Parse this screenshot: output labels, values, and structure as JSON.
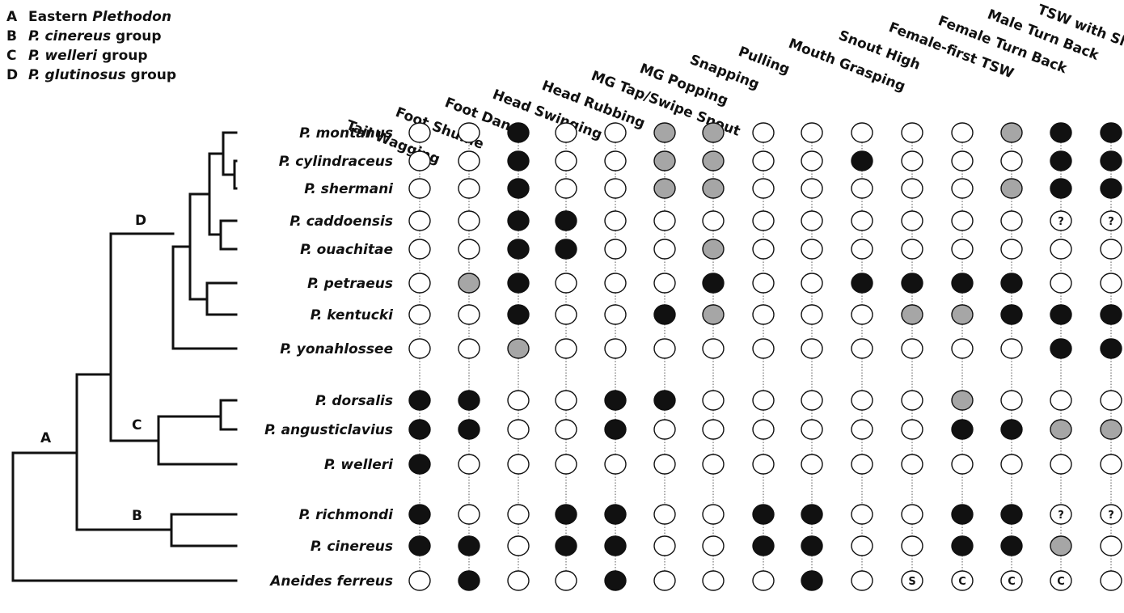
{
  "legend": [
    {
      "letter": "A",
      "parts": [
        {
          "text": "Eastern ",
          "italic": false
        },
        {
          "text": "Plethodon",
          "italic": true
        }
      ]
    },
    {
      "letter": "B",
      "parts": [
        {
          "text": "P. cinereus",
          "italic": true
        },
        {
          "text": " group",
          "italic": false
        }
      ]
    },
    {
      "letter": "C",
      "parts": [
        {
          "text": "P. welleri",
          "italic": true
        },
        {
          "text": " group",
          "italic": false
        }
      ]
    },
    {
      "letter": "D",
      "parts": [
        {
          "text": "P. glutinosus",
          "italic": true
        },
        {
          "text": " group",
          "italic": false
        }
      ]
    }
  ],
  "clade_labels": [
    "A",
    "B",
    "C",
    "D"
  ],
  "behaviors": [
    "Tail Wagging",
    "Foot Shuffle",
    "Foot Dance",
    "Head Swinging",
    "Head Rubbing",
    "MG Tap/Swipe Snout",
    "MG Popping",
    "Snapping",
    "Pulling",
    "Mouth Grasping",
    "Snout High",
    "Female-first TSW",
    "Female Turn Back",
    "Male Turn Back",
    "TSW with Slapping"
  ],
  "state_colors": {
    "present": "#111111",
    "variable": "#a6a6a6",
    "absent": "#ffffff",
    "outline": "#111111"
  },
  "state_key": {
    "0": "absent",
    "1": "present",
    "2": "variable",
    "?": "question",
    "S": "letter",
    "C": "letter"
  },
  "taxa": [
    {
      "name": "P. montanus",
      "states": [
        "0",
        "0",
        "1",
        "0",
        "0",
        "2",
        "2",
        "0",
        "0",
        "0",
        "0",
        "0",
        "2",
        "1",
        "1"
      ]
    },
    {
      "name": "P. cylindraceus",
      "states": [
        "0",
        "0",
        "1",
        "0",
        "0",
        "2",
        "2",
        "0",
        "0",
        "1",
        "0",
        "0",
        "0",
        "1",
        "1"
      ]
    },
    {
      "name": "P. shermani",
      "states": [
        "0",
        "0",
        "1",
        "0",
        "0",
        "2",
        "2",
        "0",
        "0",
        "0",
        "0",
        "0",
        "2",
        "1",
        "1"
      ]
    },
    {
      "name": "P. caddoensis",
      "states": [
        "0",
        "0",
        "1",
        "1",
        "0",
        "0",
        "0",
        "0",
        "0",
        "0",
        "0",
        "0",
        "0",
        "?",
        "?"
      ]
    },
    {
      "name": "P. ouachitae",
      "states": [
        "0",
        "0",
        "1",
        "1",
        "0",
        "0",
        "2",
        "0",
        "0",
        "0",
        "0",
        "0",
        "0",
        "0",
        "0"
      ]
    },
    {
      "name": "P. petraeus",
      "states": [
        "0",
        "2",
        "1",
        "0",
        "0",
        "0",
        "1",
        "0",
        "0",
        "1",
        "1",
        "1",
        "1",
        "0",
        "0"
      ]
    },
    {
      "name": "P. kentucki",
      "states": [
        "0",
        "0",
        "1",
        "0",
        "0",
        "1",
        "2",
        "0",
        "0",
        "0",
        "2",
        "2",
        "1",
        "1",
        "1"
      ]
    },
    {
      "name": "P. yonahlossee",
      "states": [
        "0",
        "0",
        "2",
        "0",
        "0",
        "0",
        "0",
        "0",
        "0",
        "0",
        "0",
        "0",
        "0",
        "1",
        "1"
      ]
    },
    {
      "name": "P. dorsalis",
      "states": [
        "1",
        "1",
        "0",
        "0",
        "1",
        "1",
        "0",
        "0",
        "0",
        "0",
        "0",
        "2",
        "0",
        "0",
        "0"
      ]
    },
    {
      "name": "P. angusticlavius",
      "states": [
        "1",
        "1",
        "0",
        "0",
        "1",
        "0",
        "0",
        "0",
        "0",
        "0",
        "0",
        "1",
        "1",
        "2",
        "2"
      ]
    },
    {
      "name": "P. welleri",
      "states": [
        "1",
        "0",
        "0",
        "0",
        "0",
        "0",
        "0",
        "0",
        "0",
        "0",
        "0",
        "0",
        "0",
        "0",
        "0"
      ]
    },
    {
      "name": "P. richmondi",
      "states": [
        "1",
        "0",
        "0",
        "1",
        "1",
        "0",
        "0",
        "1",
        "1",
        "0",
        "0",
        "1",
        "1",
        "?",
        "?"
      ]
    },
    {
      "name": "P. cinereus",
      "states": [
        "1",
        "1",
        "0",
        "1",
        "1",
        "0",
        "0",
        "1",
        "1",
        "0",
        "0",
        "1",
        "1",
        "2",
        "0"
      ]
    },
    {
      "name": "Aneides ferreus",
      "states": [
        "0",
        "1",
        "0",
        "0",
        "1",
        "0",
        "0",
        "0",
        "1",
        "0",
        "S",
        "C",
        "C",
        "C",
        "0"
      ]
    }
  ]
}
